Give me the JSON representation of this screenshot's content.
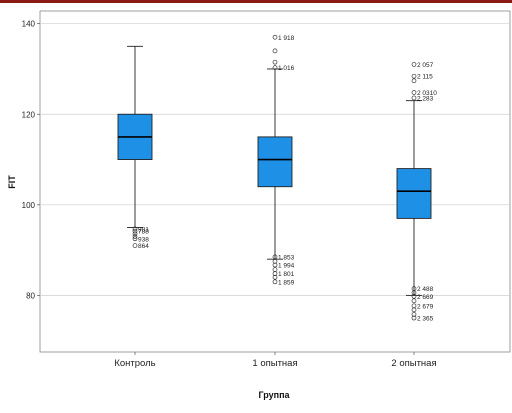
{
  "chart_data": {
    "type": "boxplot",
    "title": "",
    "xlabel": "Группа",
    "ylabel": "FIT",
    "ylim": [
      65,
      143
    ],
    "yticks": [
      80,
      100,
      120,
      140
    ],
    "grid": true,
    "colors": {
      "box": "#1e90e6",
      "median": "#000000",
      "top_bar": "#8a1a14",
      "grid": "#cfcfcf"
    },
    "categories": [
      "Контроль",
      "1 опытная",
      "2 опытная"
    ],
    "boxes": [
      {
        "category": "Контроль",
        "whisker_low": 95,
        "q1": 110,
        "median": 115,
        "q3": 120,
        "whisker_high": 135,
        "outliers": [
          {
            "value": 94.2,
            "label": "788"
          },
          {
            "value": 94.7,
            "label": "981"
          },
          {
            "value": 93.6,
            "label": ""
          },
          {
            "value": 93.0,
            "label": ""
          },
          {
            "value": 92.5,
            "label": "938"
          },
          {
            "value": 91.0,
            "label": "864"
          }
        ]
      },
      {
        "category": "1 опытная",
        "whisker_low": 88,
        "q1": 104,
        "median": 110,
        "q3": 115,
        "whisker_high": 130,
        "outliers": [
          {
            "value": 137,
            "label": "1 918"
          },
          {
            "value": 134,
            "label": ""
          },
          {
            "value": 131.5,
            "label": ""
          },
          {
            "value": 130.3,
            "label": "1 016"
          },
          {
            "value": 88.5,
            "label": "1 853"
          },
          {
            "value": 87.5,
            "label": ""
          },
          {
            "value": 86.7,
            "label": "1 994"
          },
          {
            "value": 85.7,
            "label": ""
          },
          {
            "value": 84.8,
            "label": "1 801"
          },
          {
            "value": 84.0,
            "label": ""
          },
          {
            "value": 83.0,
            "label": "1 859"
          }
        ]
      },
      {
        "category": "2 опытная",
        "whisker_low": 80,
        "q1": 97,
        "median": 103,
        "q3": 108,
        "whisker_high": 123,
        "outliers": [
          {
            "value": 131.0,
            "label": "2 057"
          },
          {
            "value": 128.4,
            "label": "2 115"
          },
          {
            "value": 127.4,
            "label": ""
          },
          {
            "value": 124.8,
            "label": "2 0310"
          },
          {
            "value": 123.6,
            "label": "2 283"
          },
          {
            "value": 81.5,
            "label": "2 488"
          },
          {
            "value": 80.6,
            "label": ""
          },
          {
            "value": 79.8,
            "label": "2 669"
          },
          {
            "value": 78.8,
            "label": ""
          },
          {
            "value": 77.7,
            "label": "2 679"
          },
          {
            "value": 76.8,
            "label": ""
          },
          {
            "value": 75.8,
            "label": ""
          },
          {
            "value": 75.0,
            "label": "2 365"
          }
        ]
      }
    ]
  }
}
